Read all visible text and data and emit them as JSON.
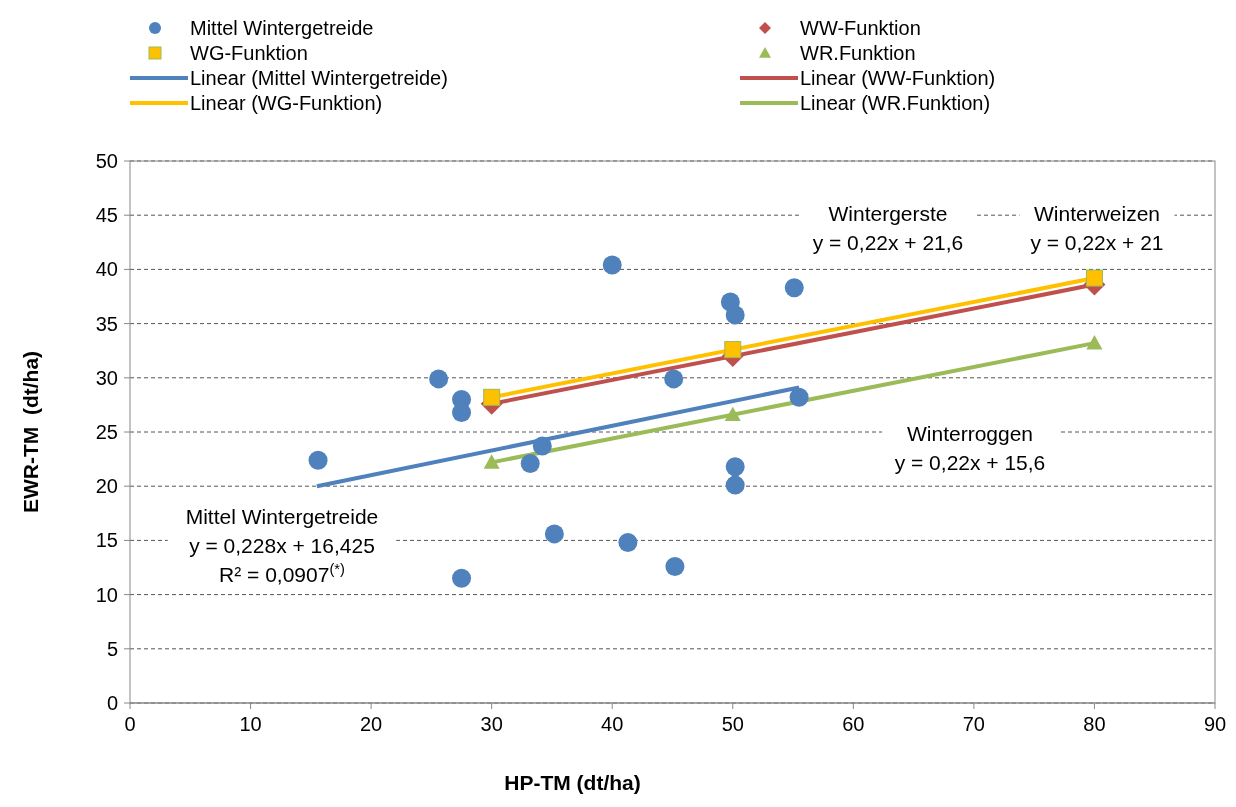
{
  "chart_data": {
    "type": "scatter",
    "xlabel": "HP-TM (dt/ha)",
    "ylabel": "EWR-TM  (dt/ha)",
    "xlim": [
      0,
      90
    ],
    "xticks": [
      0,
      10,
      20,
      30,
      40,
      50,
      60,
      70,
      80,
      90
    ],
    "ylim": [
      0,
      50
    ],
    "yticks": [
      0,
      5,
      10,
      15,
      20,
      25,
      30,
      35,
      40,
      45,
      50
    ],
    "grid": "y",
    "legend": "top",
    "series": [
      {
        "name": "Mittel Wintergetreide",
        "marker": "circle",
        "color": "#4f81bd",
        "x": [
          15.6,
          25.6,
          27.5,
          27.5,
          27.5,
          33.2,
          34.2,
          35.2,
          40.0,
          41.3,
          45.1,
          45.2,
          49.8,
          50.2,
          50.2,
          50.2,
          55.1,
          55.5
        ],
        "values": [
          22.4,
          29.9,
          28.0,
          26.8,
          11.5,
          22.1,
          23.7,
          15.6,
          40.4,
          14.8,
          29.9,
          12.6,
          37.0,
          35.8,
          21.8,
          20.1,
          38.3,
          28.2
        ]
      },
      {
        "name": "WW-Funktion",
        "marker": "diamond",
        "color": "#c0504d",
        "x": [
          30,
          50,
          80
        ],
        "values": [
          27.6,
          32,
          38.6
        ]
      },
      {
        "name": "WG-Funktion",
        "marker": "square",
        "color": "#ffc000",
        "x": [
          30,
          50,
          80
        ],
        "values": [
          28.2,
          32.6,
          39.2
        ]
      },
      {
        "name": "WR.Funktion",
        "marker": "triangle",
        "color": "#9bbb59",
        "x": [
          30,
          50,
          80
        ],
        "values": [
          22.2,
          26.6,
          33.2
        ]
      },
      {
        "name": "Linear (Mittel Wintergetreide)",
        "type": "line",
        "marker": "none",
        "color": "#4f81bd",
        "x": [
          15.5,
          55.5
        ],
        "values": [
          20.0,
          29.1
        ]
      },
      {
        "name": "Linear (WW-Funktion)",
        "type": "line",
        "marker": "none",
        "color": "#c0504d",
        "x": [
          30,
          80
        ],
        "values": [
          27.6,
          38.6
        ]
      },
      {
        "name": "Linear (WG-Funktion)",
        "type": "line",
        "marker": "none",
        "color": "#ffc000",
        "x": [
          30,
          80
        ],
        "values": [
          28.2,
          39.2
        ]
      },
      {
        "name": "Linear (WR.Funktion)",
        "type": "line",
        "marker": "none",
        "color": "#9bbb59",
        "x": [
          30,
          80
        ],
        "values": [
          22.2,
          33.2
        ]
      }
    ],
    "annotations": [
      "Mittel Wintergetreide\ny = 0,228x + 16,425\nR² = 0,0907$^{(*)}$",
      "Wintergerste\ny = 0,22x + 21,6",
      "Winterweizen\ny = 0,22x + 21",
      "Winterroggen\ny = 0,22x + 15,6"
    ]
  }
}
